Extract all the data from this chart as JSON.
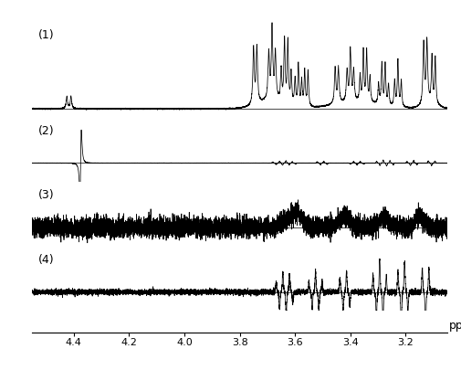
{
  "title": "",
  "xlabel": "ppm",
  "xlim": [
    4.55,
    3.05
  ],
  "labels": [
    "(1)",
    "(2)",
    "(3)",
    "(4)"
  ],
  "background_color": "#ffffff",
  "line_color": "#000000",
  "tick_positions": [
    4.4,
    4.2,
    4.0,
    3.8,
    3.6,
    3.4,
    3.2
  ],
  "tick_labels": [
    "4.4",
    "4.2",
    "4.0",
    "3.8",
    "3.6",
    "3.4",
    "3.2"
  ]
}
